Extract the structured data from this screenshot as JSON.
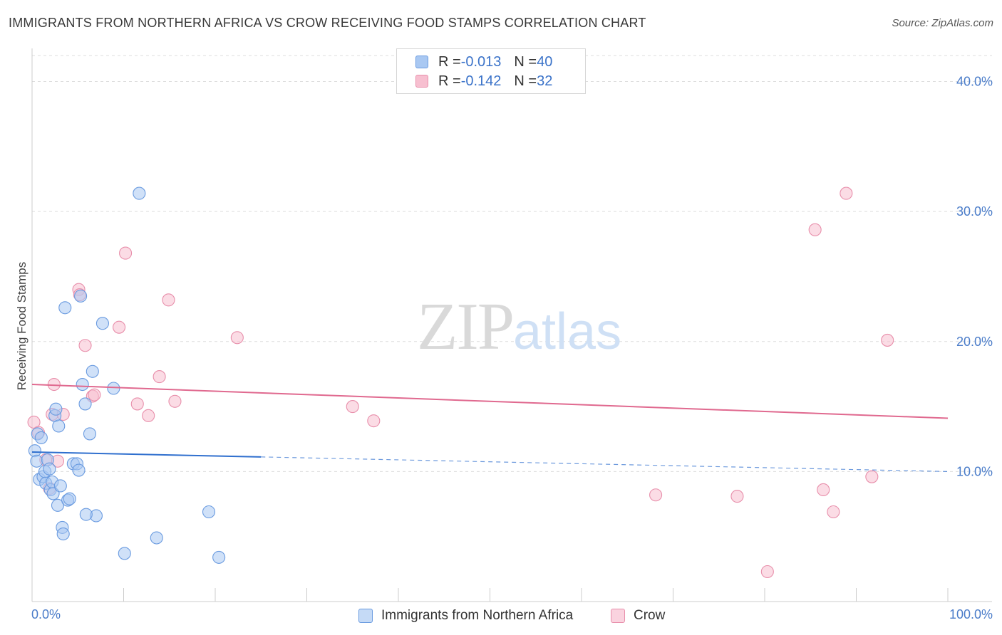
{
  "header": {
    "title": "IMMIGRANTS FROM NORTHERN AFRICA VS CROW RECEIVING FOOD STAMPS CORRELATION CHART",
    "source": "Source: ZipAtlas.com"
  },
  "watermark": {
    "zip": "ZIP",
    "atlas": "atlas"
  },
  "legend": {
    "series1": {
      "r_label": "R = ",
      "r_value": "-0.013",
      "n_label": "N = ",
      "n_value": "40",
      "color": "#a9c8f2"
    },
    "series2": {
      "r_label": "R = ",
      "r_value": "-0.142",
      "n_label": "N = ",
      "n_value": "32",
      "color": "#f7bfd0"
    }
  },
  "bottom_legend": {
    "series1_label": "Immigrants from Northern Africa",
    "series2_label": "Crow"
  },
  "colors": {
    "blue_fill": "#a9c8f2",
    "blue_stroke": "#6a9be0",
    "blue_line": "#2f6fce",
    "pink_fill": "#f7bfd0",
    "pink_stroke": "#e88fab",
    "pink_line": "#e0698f",
    "tick_text": "#4a7cc9"
  },
  "chart_data": {
    "type": "scatter",
    "title": "IMMIGRANTS FROM NORTHERN AFRICA VS CROW RECEIVING FOOD STAMPS CORRELATION CHART",
    "xlabel": "",
    "ylabel": "Receiving Food Stamps",
    "xlim": [
      0,
      100
    ],
    "ylim": [
      0,
      42
    ],
    "x_tick_labels": [
      "0.0%",
      "100.0%"
    ],
    "y_ticks": [
      10,
      20,
      30,
      40
    ],
    "y_tick_labels": [
      "10.0%",
      "20.0%",
      "30.0%",
      "40.0%"
    ],
    "grid": true,
    "legend_position": "top-center",
    "series": [
      {
        "name": "Immigrants from Northern Africa",
        "color": "#a9c8f2",
        "points": [
          [
            0.3,
            11.6
          ],
          [
            0.5,
            10.8
          ],
          [
            0.6,
            12.9
          ],
          [
            0.8,
            9.4
          ],
          [
            1.0,
            12.6
          ],
          [
            1.2,
            9.6
          ],
          [
            1.4,
            10.0
          ],
          [
            1.5,
            9.1
          ],
          [
            1.7,
            10.9
          ],
          [
            1.9,
            10.2
          ],
          [
            2.0,
            8.6
          ],
          [
            2.2,
            9.2
          ],
          [
            2.3,
            8.3
          ],
          [
            2.5,
            14.3
          ],
          [
            2.6,
            14.8
          ],
          [
            2.8,
            7.4
          ],
          [
            2.9,
            13.5
          ],
          [
            3.1,
            8.9
          ],
          [
            3.3,
            5.7
          ],
          [
            3.4,
            5.2
          ],
          [
            3.6,
            22.6
          ],
          [
            3.9,
            7.8
          ],
          [
            4.1,
            7.9
          ],
          [
            4.5,
            10.6
          ],
          [
            4.9,
            10.6
          ],
          [
            5.1,
            10.1
          ],
          [
            5.3,
            23.5
          ],
          [
            5.5,
            16.7
          ],
          [
            5.8,
            15.2
          ],
          [
            6.3,
            12.9
          ],
          [
            6.6,
            17.7
          ],
          [
            7.0,
            6.6
          ],
          [
            7.7,
            21.4
          ],
          [
            8.9,
            16.4
          ],
          [
            10.1,
            3.7
          ],
          [
            11.7,
            31.4
          ],
          [
            13.6,
            4.9
          ],
          [
            19.3,
            6.9
          ],
          [
            20.4,
            3.4
          ],
          [
            5.9,
            6.7
          ]
        ]
      },
      {
        "name": "Crow",
        "color": "#f7bfd0",
        "points": [
          [
            0.2,
            13.8
          ],
          [
            0.7,
            13.0
          ],
          [
            1.5,
            10.9
          ],
          [
            1.9,
            8.7
          ],
          [
            2.2,
            14.4
          ],
          [
            2.4,
            16.7
          ],
          [
            2.8,
            10.8
          ],
          [
            3.4,
            14.4
          ],
          [
            5.1,
            24.0
          ],
          [
            5.2,
            23.6
          ],
          [
            5.8,
            19.7
          ],
          [
            6.6,
            15.8
          ],
          [
            6.8,
            15.9
          ],
          [
            9.5,
            21.1
          ],
          [
            10.2,
            26.8
          ],
          [
            11.5,
            15.2
          ],
          [
            12.7,
            14.3
          ],
          [
            13.9,
            17.3
          ],
          [
            14.9,
            23.2
          ],
          [
            15.6,
            15.4
          ],
          [
            22.4,
            20.3
          ],
          [
            35.0,
            15.0
          ],
          [
            37.3,
            13.9
          ],
          [
            68.1,
            8.2
          ],
          [
            77.0,
            8.1
          ],
          [
            80.3,
            2.3
          ],
          [
            85.5,
            28.6
          ],
          [
            86.4,
            8.6
          ],
          [
            87.5,
            6.9
          ],
          [
            88.9,
            31.4
          ],
          [
            91.7,
            9.6
          ],
          [
            93.4,
            20.1
          ]
        ]
      }
    ],
    "trend_lines": [
      {
        "series": "Immigrants from Northern Africa",
        "x0": 0,
        "y0": 11.5,
        "x1": 100,
        "y1": 10.0,
        "solid_until_x": 25
      },
      {
        "series": "Crow",
        "x0": 0,
        "y0": 16.7,
        "x1": 100,
        "y1": 14.1
      }
    ]
  }
}
